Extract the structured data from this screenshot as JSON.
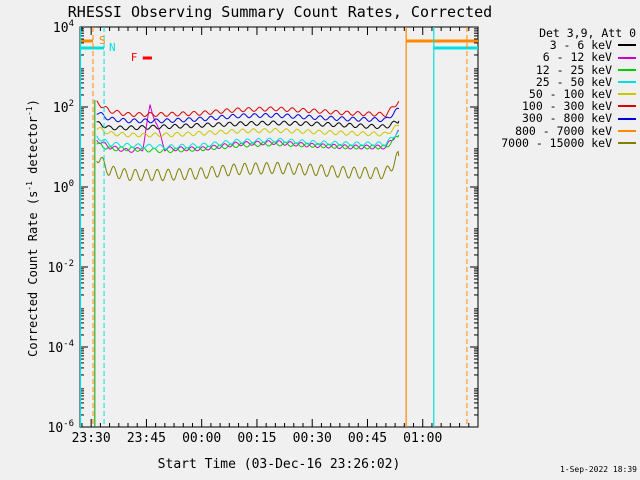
{
  "chart_data": {
    "type": "line",
    "title": "RHESSI Observing Summary Count Rates, Corrected",
    "xlabel": "Start Time (03-Dec-16 23:26:02)",
    "ylabel": "Corrected Count Rate (s",
    "ylabel_sup1": "-1",
    "ylabel_mid": " detector",
    "ylabel_sup2": "-1",
    "ylabel_end": ")",
    "x_ticks": [
      "23:30",
      "23:45",
      "00:00",
      "00:15",
      "00:30",
      "00:45",
      "01:00"
    ],
    "y_ticks": [
      {
        "base": "10",
        "exp": "-6"
      },
      {
        "base": "10",
        "exp": "-4"
      },
      {
        "base": "10",
        "exp": "-2"
      },
      {
        "base": "10",
        "exp": "0"
      },
      {
        "base": "10",
        "exp": "2"
      },
      {
        "base": "10",
        "exp": "4"
      }
    ],
    "y_scale": "log",
    "ylim": [
      1e-06,
      10000.0
    ],
    "x_range_minutes": [
      -3.03,
      105.0
    ],
    "legend_title": "Det 3,9, Att 0",
    "legend_position": "right",
    "series": [
      {
        "name": "3 - 6 keV",
        "color": "#000000",
        "x": [
          1.5,
          5,
          10,
          20,
          30,
          40,
          50,
          60,
          70,
          75,
          80,
          83.5
        ],
        "y": [
          40,
          30,
          30,
          32,
          35,
          38,
          40,
          38,
          35,
          33,
          32,
          45
        ]
      },
      {
        "name": "6 - 12 keV",
        "color": "#cc00cc",
        "x": [
          1.5,
          5,
          10,
          14,
          16,
          20,
          30,
          40,
          50,
          60,
          70,
          80,
          83.5
        ],
        "y": [
          15,
          10,
          8,
          9,
          110,
          9,
          9,
          12,
          13,
          11,
          10,
          10,
          25
        ]
      },
      {
        "name": "12 - 25 keV",
        "color": "#00cc00",
        "x": [
          1.5,
          5,
          10,
          20,
          30,
          40,
          50,
          60,
          70,
          80,
          83.5
        ],
        "y": [
          12,
          9,
          9,
          8,
          9,
          11,
          12,
          11,
          10,
          10,
          20
        ]
      },
      {
        "name": "25 - 50 keV",
        "color": "#00e0e0",
        "x": [
          1.5,
          5,
          10,
          20,
          30,
          40,
          50,
          60,
          70,
          80,
          83.5
        ],
        "y": [
          18,
          12,
          11,
          10,
          11,
          14,
          15,
          13,
          12,
          12,
          25
        ]
      },
      {
        "name": "50 - 100 keV",
        "color": "#c8c800",
        "x": [
          1.5,
          5,
          10,
          20,
          30,
          40,
          50,
          60,
          70,
          80,
          83.5
        ],
        "y": [
          30,
          22,
          20,
          20,
          22,
          25,
          26,
          24,
          22,
          21,
          35
        ]
      },
      {
        "name": "100 - 300 keV",
        "color": "#dd0000",
        "x": [
          1.5,
          5,
          10,
          20,
          30,
          40,
          50,
          60,
          70,
          80,
          83.5
        ],
        "y": [
          130,
          80,
          65,
          65,
          70,
          85,
          90,
          80,
          70,
          65,
          140
        ]
      },
      {
        "name": "300 - 800 keV",
        "color": "#0000dd",
        "x": [
          1.5,
          5,
          10,
          20,
          30,
          40,
          50,
          60,
          70,
          80,
          83.5
        ],
        "y": [
          75,
          50,
          45,
          45,
          50,
          60,
          62,
          55,
          50,
          48,
          90
        ]
      },
      {
        "name": "800 - 7000 keV",
        "color": "#ff8800",
        "x": [],
        "y": []
      },
      {
        "name": "7000 - 15000 keV",
        "color": "#808000",
        "x": [
          1.5,
          3,
          5,
          10,
          20,
          30,
          40,
          50,
          60,
          70,
          80,
          83.5
        ],
        "y": [
          6,
          4,
          2.5,
          2,
          2,
          2.2,
          2.8,
          3,
          2.7,
          2.3,
          2.2,
          6
        ]
      }
    ],
    "annotations": {
      "s_label": "S",
      "n_label": "N",
      "f_label": "F",
      "s_color": "#ff8800",
      "n_color": "#00e0e0",
      "f_color": "#ff0000",
      "saa_interval_minutes": [
        [
          -3.03,
          0.5
        ],
        [
          85.5,
          105.0
        ]
      ],
      "night_interval_minutes": [
        [
          -3.03,
          3.5
        ],
        [
          93.0,
          105.0
        ]
      ],
      "flare_marker_minutes": [
        14.0,
        16.5
      ]
    }
  },
  "footer_stamp": "1-Sep-2022 18:39"
}
